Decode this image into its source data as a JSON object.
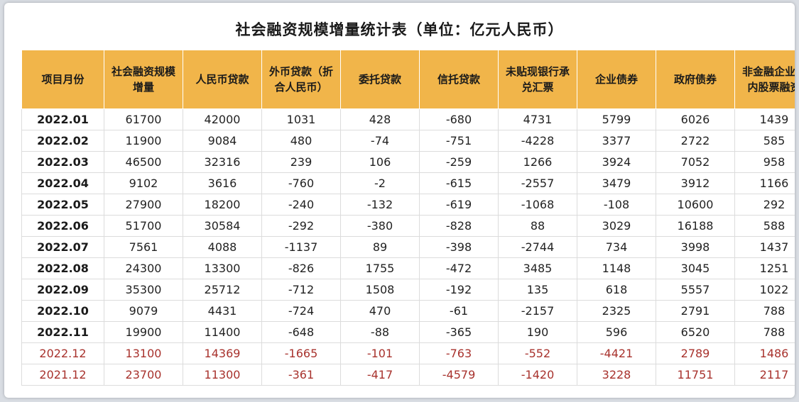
{
  "title": "社会融资规模增量统计表（单位：亿元人民币）",
  "headers": [
    "项目月份",
    "社会融资规模增量",
    "人民币贷款",
    "外币贷款（折合人民币）",
    "委托贷款",
    "信托贷款",
    "未贴现银行承兑汇票",
    "企业债券",
    "政府债券",
    "非金融企业境内股票融资"
  ],
  "rows": [
    {
      "month": "2022.01",
      "highlight": false,
      "values": [
        "61700",
        "42000",
        "1031",
        "428",
        "-680",
        "4731",
        "5799",
        "6026",
        "1439"
      ]
    },
    {
      "month": "2022.02",
      "highlight": false,
      "values": [
        "11900",
        "9084",
        "480",
        "-74",
        "-751",
        "-4228",
        "3377",
        "2722",
        "585"
      ]
    },
    {
      "month": "2022.03",
      "highlight": false,
      "values": [
        "46500",
        "32316",
        "239",
        "106",
        "-259",
        "1266",
        "3924",
        "7052",
        "958"
      ]
    },
    {
      "month": "2022.04",
      "highlight": false,
      "values": [
        "9102",
        "3616",
        "-760",
        "-2",
        "-615",
        "-2557",
        "3479",
        "3912",
        "1166"
      ]
    },
    {
      "month": "2022.05",
      "highlight": false,
      "values": [
        "27900",
        "18200",
        "-240",
        "-132",
        "-619",
        "-1068",
        "-108",
        "10600",
        "292"
      ]
    },
    {
      "month": "2022.06",
      "highlight": false,
      "values": [
        "51700",
        "30584",
        "-292",
        "-380",
        "-828",
        "88",
        "3029",
        "16188",
        "588"
      ]
    },
    {
      "month": "2022.07",
      "highlight": false,
      "values": [
        "7561",
        "4088",
        "-1137",
        "89",
        "-398",
        "-2744",
        "734",
        "3998",
        "1437"
      ]
    },
    {
      "month": "2022.08",
      "highlight": false,
      "values": [
        "24300",
        "13300",
        "-826",
        "1755",
        "-472",
        "3485",
        "1148",
        "3045",
        "1251"
      ]
    },
    {
      "month": "2022.09",
      "highlight": false,
      "values": [
        "35300",
        "25712",
        "-712",
        "1508",
        "-192",
        "135",
        "618",
        "5557",
        "1022"
      ]
    },
    {
      "month": "2022.10",
      "highlight": false,
      "values": [
        "9079",
        "4431",
        "-724",
        "470",
        "-61",
        "-2157",
        "2325",
        "2791",
        "788"
      ]
    },
    {
      "month": "2022.11",
      "highlight": false,
      "values": [
        "19900",
        "11400",
        "-648",
        "-88",
        "-365",
        "190",
        "596",
        "6520",
        "788"
      ]
    },
    {
      "month": "2022.12",
      "highlight": true,
      "values": [
        "13100",
        "14369",
        "-1665",
        "-101",
        "-763",
        "-552",
        "-4421",
        "2789",
        "1486"
      ]
    },
    {
      "month": "2021.12",
      "highlight": true,
      "values": [
        "23700",
        "11300",
        "-361",
        "-417",
        "-4579",
        "-1420",
        "3228",
        "11751",
        "2117"
      ]
    }
  ],
  "colors": {
    "header_bg": "#f1b54a",
    "highlight_text": "#a8322d"
  }
}
